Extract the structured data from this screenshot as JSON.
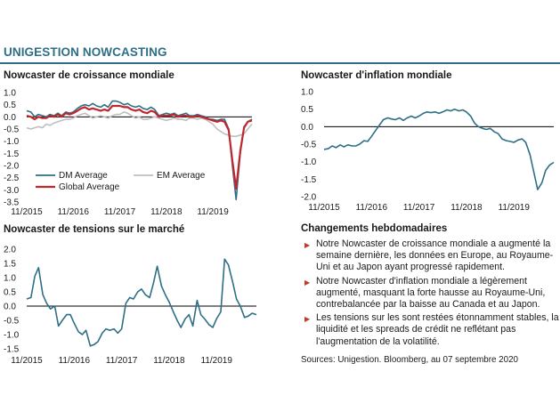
{
  "header": {
    "title": "UNIGESTION NOWCASTING"
  },
  "colors": {
    "dm": "#2e6f86",
    "em": "#bfbfbf",
    "global": "#c0272d",
    "inflation": "#2e6f86",
    "risk": "#2e6f86",
    "zero": "#000000"
  },
  "x_ticks": [
    "11/2015",
    "11/2016",
    "11/2017",
    "11/2018",
    "11/2019"
  ],
  "chart_data": [
    {
      "id": "growth",
      "type": "line",
      "title": "Nowcaster de croissance mondiale",
      "ylim": [
        -3.5,
        1.0
      ],
      "yticks": [
        "1.0",
        "0.5",
        "0.0",
        "-0.5",
        "-1.0",
        "-1.5",
        "-2.0",
        "-2.5",
        "-3.0",
        "-3.5"
      ],
      "ytick_values": [
        1.0,
        0.5,
        0.0,
        -0.5,
        -1.0,
        -1.5,
        -2.0,
        -2.5,
        -3.0,
        -3.5
      ],
      "xlim": [
        2015.83,
        2020.67
      ],
      "legend": [
        "DM Average",
        "EM Average",
        "Global Average"
      ],
      "series": [
        {
          "name": "DM Average",
          "color_key": "dm",
          "x": [
            2015.83,
            2015.92,
            2016.0,
            2016.08,
            2016.17,
            2016.25,
            2016.33,
            2016.42,
            2016.5,
            2016.58,
            2016.67,
            2016.75,
            2016.83,
            2016.92,
            2017.0,
            2017.08,
            2017.17,
            2017.25,
            2017.33,
            2017.42,
            2017.5,
            2017.58,
            2017.67,
            2017.75,
            2017.83,
            2017.92,
            2018.0,
            2018.08,
            2018.17,
            2018.25,
            2018.33,
            2018.42,
            2018.5,
            2018.58,
            2018.67,
            2018.75,
            2018.83,
            2018.92,
            2019.0,
            2019.08,
            2019.17,
            2019.25,
            2019.33,
            2019.42,
            2019.5,
            2019.58,
            2019.67,
            2019.75,
            2019.83,
            2019.92,
            2020.0,
            2020.08,
            2020.17,
            2020.25,
            2020.33,
            2020.42,
            2020.5,
            2020.58,
            2020.67
          ],
          "y": [
            0.25,
            0.2,
            0.0,
            0.1,
            0.05,
            0.0,
            0.1,
            0.05,
            0.15,
            0.05,
            0.2,
            0.15,
            0.2,
            0.35,
            0.45,
            0.5,
            0.45,
            0.55,
            0.45,
            0.4,
            0.5,
            0.4,
            0.65,
            0.65,
            0.6,
            0.5,
            0.55,
            0.45,
            0.4,
            0.45,
            0.35,
            0.3,
            0.4,
            0.3,
            0.05,
            0.1,
            0.15,
            0.1,
            0.15,
            0.05,
            0.1,
            0.15,
            0.05,
            0.05,
            0.1,
            0.05,
            0.0,
            -0.1,
            -0.1,
            -0.15,
            -0.1,
            -0.1,
            -0.5,
            -2.0,
            -3.4,
            -1.5,
            -0.4,
            -0.2,
            -0.1
          ]
        },
        {
          "name": "EM Average",
          "color_key": "em",
          "x": [
            2015.83,
            2015.92,
            2016.0,
            2016.08,
            2016.17,
            2016.25,
            2016.33,
            2016.42,
            2016.5,
            2016.58,
            2016.67,
            2016.75,
            2016.83,
            2016.92,
            2017.0,
            2017.08,
            2017.17,
            2017.25,
            2017.33,
            2017.42,
            2017.5,
            2017.58,
            2017.67,
            2017.75,
            2017.83,
            2017.92,
            2018.0,
            2018.08,
            2018.17,
            2018.25,
            2018.33,
            2018.42,
            2018.5,
            2018.58,
            2018.67,
            2018.75,
            2018.83,
            2018.92,
            2019.0,
            2019.08,
            2019.17,
            2019.25,
            2019.33,
            2019.42,
            2019.5,
            2019.58,
            2019.67,
            2019.75,
            2019.83,
            2019.92,
            2020.0,
            2020.08,
            2020.17,
            2020.25,
            2020.33,
            2020.42,
            2020.5,
            2020.58,
            2020.67
          ],
          "y": [
            -0.45,
            -0.5,
            -0.45,
            -0.4,
            -0.45,
            -0.3,
            -0.35,
            -0.25,
            -0.2,
            -0.15,
            -0.1,
            -0.1,
            -0.05,
            0.05,
            0.1,
            0.15,
            0.05,
            -0.05,
            0.0,
            0.05,
            0.0,
            -0.05,
            0.05,
            0.1,
            0.1,
            0.2,
            0.15,
            0.05,
            -0.05,
            0.0,
            -0.1,
            -0.1,
            -0.05,
            0.0,
            -0.05,
            -0.1,
            -0.15,
            -0.1,
            -0.05,
            -0.1,
            -0.1,
            -0.15,
            -0.05,
            -0.05,
            -0.1,
            -0.05,
            -0.1,
            -0.2,
            -0.3,
            -0.5,
            -0.6,
            -0.7,
            -0.75,
            -0.8,
            -0.8,
            -0.75,
            -0.7,
            -0.5,
            -0.3
          ]
        },
        {
          "name": "Global Average",
          "color_key": "global",
          "x": [
            2015.83,
            2015.92,
            2016.0,
            2016.08,
            2016.17,
            2016.25,
            2016.33,
            2016.42,
            2016.5,
            2016.58,
            2016.67,
            2016.75,
            2016.83,
            2016.92,
            2017.0,
            2017.08,
            2017.17,
            2017.25,
            2017.33,
            2017.42,
            2017.5,
            2017.58,
            2017.67,
            2017.75,
            2017.83,
            2017.92,
            2018.0,
            2018.08,
            2018.17,
            2018.25,
            2018.33,
            2018.42,
            2018.5,
            2018.58,
            2018.67,
            2018.75,
            2018.83,
            2018.92,
            2019.0,
            2019.08,
            2019.17,
            2019.25,
            2019.33,
            2019.42,
            2019.5,
            2019.58,
            2019.67,
            2019.75,
            2019.83,
            2019.92,
            2020.0,
            2020.08,
            2020.17,
            2020.25,
            2020.33,
            2020.42,
            2020.5,
            2020.58,
            2020.67
          ],
          "y": [
            0.05,
            0.0,
            -0.1,
            0.0,
            -0.05,
            -0.05,
            0.05,
            0.0,
            0.1,
            0.0,
            0.15,
            0.1,
            0.15,
            0.25,
            0.35,
            0.4,
            0.3,
            0.35,
            0.3,
            0.25,
            0.3,
            0.25,
            0.45,
            0.45,
            0.45,
            0.4,
            0.4,
            0.3,
            0.25,
            0.3,
            0.2,
            0.15,
            0.25,
            0.2,
            0.0,
            0.05,
            0.05,
            0.05,
            0.1,
            0.0,
            0.05,
            0.05,
            0.0,
            0.0,
            0.05,
            0.0,
            -0.05,
            -0.1,
            -0.15,
            -0.2,
            -0.15,
            -0.2,
            -0.55,
            -1.8,
            -2.95,
            -1.4,
            -0.45,
            -0.2,
            -0.15
          ]
        }
      ]
    },
    {
      "id": "inflation",
      "type": "line",
      "title": "Nowcaster d'inflation mondiale",
      "ylim": [
        -2.0,
        1.0
      ],
      "yticks": [
        "1.0",
        "0.5",
        "0.0",
        "-0.5",
        "-1.0",
        "-1.5",
        "-2.0"
      ],
      "ytick_values": [
        1.0,
        0.5,
        0.0,
        -0.5,
        -1.0,
        -1.5,
        -2.0
      ],
      "xlim": [
        2015.83,
        2020.67
      ],
      "series": [
        {
          "name": "",
          "color_key": "inflation",
          "x": [
            2015.83,
            2015.92,
            2016.0,
            2016.08,
            2016.17,
            2016.25,
            2016.33,
            2016.42,
            2016.5,
            2016.58,
            2016.67,
            2016.75,
            2016.83,
            2016.92,
            2017.0,
            2017.08,
            2017.17,
            2017.25,
            2017.33,
            2017.42,
            2017.5,
            2017.58,
            2017.67,
            2017.75,
            2017.83,
            2017.92,
            2018.0,
            2018.08,
            2018.17,
            2018.25,
            2018.33,
            2018.42,
            2018.5,
            2018.58,
            2018.67,
            2018.75,
            2018.83,
            2018.92,
            2019.0,
            2019.08,
            2019.17,
            2019.25,
            2019.33,
            2019.42,
            2019.5,
            2019.58,
            2019.67,
            2019.75,
            2019.83,
            2019.92,
            2020.0,
            2020.08,
            2020.17,
            2020.25,
            2020.33,
            2020.42,
            2020.5,
            2020.58,
            2020.67
          ],
          "y": [
            -0.65,
            -0.63,
            -0.55,
            -0.6,
            -0.52,
            -0.58,
            -0.52,
            -0.55,
            -0.55,
            -0.5,
            -0.4,
            -0.42,
            -0.28,
            -0.1,
            0.05,
            0.2,
            0.25,
            0.22,
            0.2,
            0.25,
            0.18,
            0.25,
            0.3,
            0.25,
            0.3,
            0.38,
            0.42,
            0.4,
            0.42,
            0.38,
            0.42,
            0.48,
            0.45,
            0.5,
            0.45,
            0.48,
            0.42,
            0.3,
            0.1,
            0.0,
            -0.05,
            -0.08,
            -0.05,
            -0.15,
            -0.2,
            -0.35,
            -0.4,
            -0.42,
            -0.45,
            -0.38,
            -0.35,
            -0.45,
            -0.8,
            -1.3,
            -1.8,
            -1.6,
            -1.25,
            -1.1,
            -1.02
          ]
        }
      ]
    },
    {
      "id": "risk",
      "type": "line",
      "title": "Nowcaster de tensions sur le marché",
      "ylim": [
        -1.5,
        2.0
      ],
      "yticks": [
        "2.0",
        "1.5",
        "1.0",
        "0.5",
        "0.0",
        "-0.5",
        "-1.0",
        "-1.5"
      ],
      "ytick_values": [
        2.0,
        1.5,
        1.0,
        0.5,
        0.0,
        -0.5,
        -1.0,
        -1.5
      ],
      "xlim": [
        2015.83,
        2020.67
      ],
      "series": [
        {
          "name": "",
          "color_key": "risk",
          "x": [
            2015.83,
            2015.92,
            2016.0,
            2016.08,
            2016.17,
            2016.25,
            2016.33,
            2016.42,
            2016.5,
            2016.58,
            2016.67,
            2016.75,
            2016.83,
            2016.92,
            2017.0,
            2017.08,
            2017.17,
            2017.25,
            2017.33,
            2017.42,
            2017.5,
            2017.58,
            2017.67,
            2017.75,
            2017.83,
            2017.92,
            2018.0,
            2018.08,
            2018.17,
            2018.25,
            2018.33,
            2018.42,
            2018.5,
            2018.58,
            2018.67,
            2018.75,
            2018.83,
            2018.92,
            2019.0,
            2019.08,
            2019.17,
            2019.25,
            2019.33,
            2019.42,
            2019.5,
            2019.58,
            2019.67,
            2019.75,
            2019.83,
            2019.92,
            2020.0,
            2020.08,
            2020.17,
            2020.25,
            2020.33,
            2020.42,
            2020.5,
            2020.58,
            2020.67
          ],
          "y": [
            0.25,
            0.3,
            1.05,
            1.35,
            0.4,
            0.1,
            -0.1,
            0.0,
            -0.7,
            -0.5,
            -0.3,
            -0.3,
            -0.6,
            -0.9,
            -1.0,
            -0.85,
            -1.4,
            -1.35,
            -1.25,
            -0.95,
            -0.8,
            -0.85,
            -0.8,
            -0.95,
            -0.8,
            0.1,
            0.3,
            0.25,
            0.5,
            0.6,
            0.4,
            0.3,
            0.8,
            1.4,
            0.7,
            0.4,
            0.15,
            -0.2,
            -0.5,
            -0.75,
            -0.45,
            -0.3,
            -0.7,
            0.2,
            -0.3,
            -0.45,
            -0.65,
            -0.75,
            -0.45,
            -0.2,
            1.65,
            1.45,
            0.85,
            0.25,
            0.0,
            -0.4,
            -0.35,
            -0.25,
            -0.3
          ]
        }
      ]
    }
  ],
  "notes_title": "Changements hebdomadaires",
  "notes": [
    "Notre Nowcaster de croissance mondiale a augmenté la semaine dernière, les données en Europe, au Royaume-Uni et au Japon ayant progressé rapidement.",
    "Notre Nowcaster d'inflation mondiale a légèrement augmenté, masquant la forte hausse au Royaume-Uni, contrebalancée par la baisse au Canada et au Japon.",
    "Les tensions sur les sont restées étonnamment stables, la liquidité et les spreads de crédit ne reflétant pas l'augmentation de la volatilité."
  ],
  "sources": "Sources: Unigestion. Bloomberg, au 07 septembre 2020"
}
